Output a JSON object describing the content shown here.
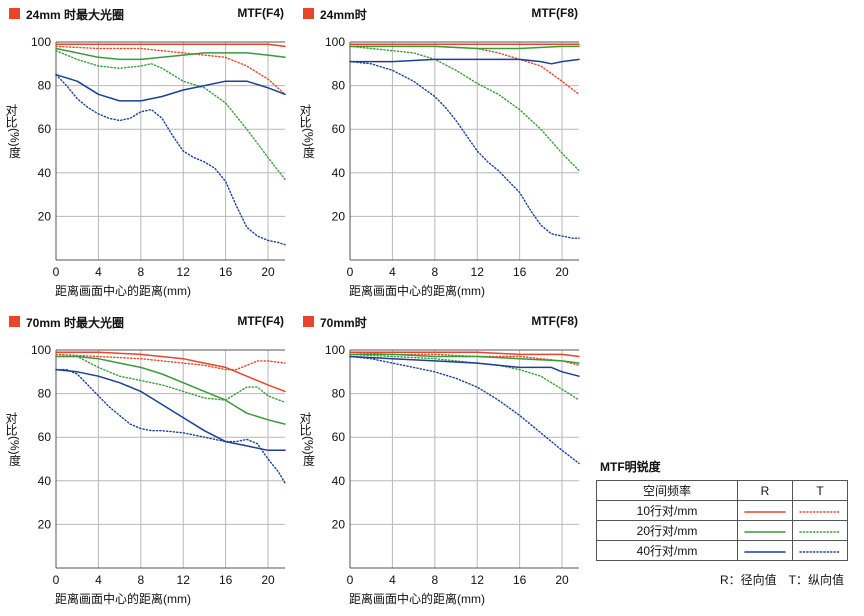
{
  "chart_data": [
    {
      "type": "line",
      "title": "24mm 时最大光圈",
      "aperture": "MTF(F4)",
      "ylabel_top": "对比",
      "ylabel_bottom": "(%)度",
      "xlabel": "距离画面中心的距离(mm)",
      "xlim": [
        0,
        21.6
      ],
      "ylim": [
        0,
        100
      ],
      "xticks": [
        0,
        4,
        8,
        12,
        16,
        20
      ],
      "yticks": [
        20,
        40,
        60,
        80,
        100
      ],
      "series": [
        {
          "name": "10行对/mm R",
          "style": "solid",
          "color": "#e8462a",
          "x": [
            0,
            4,
            8,
            12,
            16,
            20,
            21.6
          ],
          "y": [
            99,
            99,
            99,
            99,
            99,
            99,
            98
          ]
        },
        {
          "name": "10行对/mm T",
          "style": "dotted",
          "color": "#e8462a",
          "x": [
            0,
            4,
            8,
            12,
            16,
            18,
            20,
            21.6
          ],
          "y": [
            98,
            97,
            97,
            95,
            93,
            89,
            83,
            76
          ]
        },
        {
          "name": "20行对/mm R",
          "style": "solid",
          "color": "#3a9a3a",
          "x": [
            0,
            2,
            4,
            6,
            8,
            10,
            12,
            14,
            16,
            18,
            20,
            21.6
          ],
          "y": [
            97,
            95,
            93,
            92,
            92,
            93,
            94,
            95,
            95,
            95,
            94,
            93
          ]
        },
        {
          "name": "20行对/mm T",
          "style": "dotted",
          "color": "#3a9a3a",
          "x": [
            0,
            2,
            4,
            6,
            8,
            9,
            10,
            12,
            14,
            16,
            18,
            20,
            21.6
          ],
          "y": [
            96,
            92,
            89,
            88,
            89,
            90,
            88,
            82,
            79,
            72,
            60,
            47,
            37
          ]
        },
        {
          "name": "40行对/mm R",
          "style": "solid",
          "color": "#1b3f96",
          "x": [
            0,
            2,
            4,
            6,
            8,
            10,
            12,
            14,
            16,
            18,
            20,
            21.6
          ],
          "y": [
            85,
            82,
            76,
            73,
            73,
            75,
            78,
            80,
            82,
            82,
            79,
            76
          ]
        },
        {
          "name": "40行对/mm T",
          "style": "dotted",
          "color": "#1b3f96",
          "x": [
            0,
            1,
            2,
            3,
            4,
            5,
            6,
            7,
            8,
            9,
            10,
            11,
            12,
            13,
            14,
            15,
            16,
            17,
            18,
            19,
            20,
            21,
            21.6
          ],
          "y": [
            85,
            80,
            74,
            70,
            67,
            65,
            64,
            65,
            68,
            69,
            65,
            57,
            50,
            47,
            45,
            42,
            36,
            25,
            15,
            11,
            9,
            8,
            7
          ]
        }
      ]
    },
    {
      "type": "line",
      "title": "24mm时",
      "aperture": "MTF(F8)",
      "ylabel_top": "对比",
      "ylabel_bottom": "(%)度",
      "xlabel": "距离画面中心的距离(mm)",
      "xlim": [
        0,
        21.6
      ],
      "ylim": [
        0,
        100
      ],
      "xticks": [
        0,
        4,
        8,
        12,
        16,
        20
      ],
      "yticks": [
        20,
        40,
        60,
        80,
        100
      ],
      "series": [
        {
          "name": "10行对/mm R",
          "style": "solid",
          "color": "#e8462a",
          "x": [
            0,
            4,
            8,
            12,
            16,
            20,
            21.6
          ],
          "y": [
            99,
            99,
            99,
            99,
            99,
            99,
            99
          ]
        },
        {
          "name": "10行对/mm T",
          "style": "dotted",
          "color": "#e8462a",
          "x": [
            0,
            4,
            8,
            12,
            14,
            16,
            18,
            20,
            21.6
          ],
          "y": [
            98,
            98,
            98,
            97,
            95,
            92,
            89,
            82,
            76
          ]
        },
        {
          "name": "20行对/mm R",
          "style": "solid",
          "color": "#3a9a3a",
          "x": [
            0,
            4,
            8,
            12,
            16,
            20,
            21.6
          ],
          "y": [
            98,
            98,
            98,
            97,
            97,
            98,
            98
          ]
        },
        {
          "name": "20行对/mm T",
          "style": "dotted",
          "color": "#3a9a3a",
          "x": [
            0,
            2,
            4,
            6,
            8,
            10,
            12,
            14,
            16,
            18,
            20,
            21.6
          ],
          "y": [
            98,
            97,
            96,
            95,
            92,
            87,
            81,
            76,
            69,
            60,
            49,
            41
          ]
        },
        {
          "name": "40行对/mm R",
          "style": "solid",
          "color": "#1b3f96",
          "x": [
            0,
            4,
            8,
            12,
            16,
            18,
            19,
            20,
            21.6
          ],
          "y": [
            91,
            91,
            92,
            92,
            92,
            91,
            90,
            91,
            92
          ]
        },
        {
          "name": "40行对/mm T",
          "style": "dotted",
          "color": "#1b3f96",
          "x": [
            0,
            2,
            4,
            6,
            8,
            9,
            10,
            11,
            12,
            13,
            14,
            15,
            16,
            17,
            18,
            19,
            20,
            21,
            21.6
          ],
          "y": [
            91,
            90,
            87,
            82,
            75,
            70,
            64,
            57,
            50,
            45,
            41,
            36,
            31,
            23,
            16,
            12,
            11,
            10,
            10
          ]
        }
      ]
    },
    {
      "type": "line",
      "title": "70mm 时最大光圈",
      "aperture": "MTF(F4)",
      "ylabel_top": "对比",
      "ylabel_bottom": "(%)度",
      "xlabel": "距离画面中心的距离(mm)",
      "xlim": [
        0,
        21.6
      ],
      "ylim": [
        0,
        100
      ],
      "xticks": [
        0,
        4,
        8,
        12,
        16,
        20
      ],
      "yticks": [
        20,
        40,
        60,
        80,
        100
      ],
      "series": [
        {
          "name": "10行对/mm R",
          "style": "solid",
          "color": "#e8462a",
          "x": [
            0,
            4,
            8,
            12,
            14,
            16,
            18,
            20,
            21.6
          ],
          "y": [
            99,
            99,
            98,
            96,
            94,
            92,
            88,
            84,
            81
          ]
        },
        {
          "name": "10行对/mm T",
          "style": "dotted",
          "color": "#e8462a",
          "x": [
            0,
            4,
            8,
            12,
            14,
            16,
            17,
            18,
            19,
            20,
            21.6
          ],
          "y": [
            98,
            97,
            96,
            94,
            93,
            91,
            91,
            93,
            95,
            95,
            94
          ]
        },
        {
          "name": "20行对/mm R",
          "style": "solid",
          "color": "#3a9a3a",
          "x": [
            0,
            2,
            4,
            6,
            8,
            10,
            12,
            14,
            16,
            17,
            18,
            20,
            21.6
          ],
          "y": [
            97,
            97,
            96,
            94,
            92,
            89,
            85,
            81,
            77,
            74,
            71,
            68,
            66
          ]
        },
        {
          "name": "20行对/mm T",
          "style": "dotted",
          "color": "#3a9a3a",
          "x": [
            0,
            2,
            4,
            6,
            8,
            10,
            12,
            14,
            16,
            17,
            18,
            19,
            20,
            21.6
          ],
          "y": [
            97,
            97,
            92,
            88,
            86,
            84,
            81,
            78,
            77,
            80,
            83,
            83,
            79,
            76
          ]
        },
        {
          "name": "40行对/mm R",
          "style": "solid",
          "color": "#1b3f96",
          "x": [
            0,
            2,
            4,
            6,
            8,
            10,
            12,
            14,
            16,
            18,
            20,
            21.6
          ],
          "y": [
            91,
            90,
            88,
            85,
            81,
            75,
            69,
            63,
            58,
            56,
            54,
            54
          ]
        },
        {
          "name": "40行对/mm T",
          "style": "dotted",
          "color": "#1b3f96",
          "x": [
            0,
            1,
            2,
            3,
            4,
            5,
            6,
            7,
            8,
            9,
            10,
            12,
            14,
            15,
            16,
            17,
            18,
            19,
            20,
            21,
            21.6
          ],
          "y": [
            91,
            91,
            89,
            84,
            79,
            74,
            70,
            66,
            64,
            63,
            63,
            62,
            60,
            59,
            58,
            58,
            59,
            57,
            50,
            44,
            39
          ]
        }
      ]
    },
    {
      "type": "line",
      "title": "70mm时",
      "aperture": "MTF(F8)",
      "ylabel_top": "对比",
      "ylabel_bottom": "(%)度",
      "xlabel": "距离画面中心的距离(mm)",
      "xlim": [
        0,
        21.6
      ],
      "ylim": [
        0,
        100
      ],
      "xticks": [
        0,
        4,
        8,
        12,
        16,
        20
      ],
      "yticks": [
        20,
        40,
        60,
        80,
        100
      ],
      "series": [
        {
          "name": "10行对/mm R",
          "style": "solid",
          "color": "#e8462a",
          "x": [
            0,
            4,
            8,
            12,
            16,
            20,
            21.6
          ],
          "y": [
            99,
            99,
            99,
            99,
            98,
            98,
            97
          ]
        },
        {
          "name": "10行对/mm T",
          "style": "dotted",
          "color": "#e8462a",
          "x": [
            0,
            4,
            8,
            12,
            16,
            18,
            20,
            21.6
          ],
          "y": [
            99,
            98,
            98,
            97,
            97,
            96,
            95,
            93
          ]
        },
        {
          "name": "20行对/mm R",
          "style": "solid",
          "color": "#3a9a3a",
          "x": [
            0,
            4,
            8,
            12,
            16,
            20,
            21.6
          ],
          "y": [
            98,
            98,
            97,
            97,
            96,
            95,
            94
          ]
        },
        {
          "name": "20行对/mm T",
          "style": "dotted",
          "color": "#3a9a3a",
          "x": [
            0,
            4,
            8,
            12,
            14,
            16,
            18,
            20,
            21.6
          ],
          "y": [
            98,
            97,
            96,
            94,
            93,
            91,
            88,
            82,
            77
          ]
        },
        {
          "name": "40行对/mm R",
          "style": "solid",
          "color": "#1b3f96",
          "x": [
            0,
            4,
            8,
            12,
            14,
            16,
            18,
            19,
            20,
            21.6
          ],
          "y": [
            97,
            96,
            95,
            94,
            93,
            92,
            92,
            92,
            90,
            88
          ]
        },
        {
          "name": "40行对/mm T",
          "style": "dotted",
          "color": "#1b3f96",
          "x": [
            0,
            2,
            4,
            6,
            8,
            10,
            12,
            14,
            16,
            18,
            20,
            21.6
          ],
          "y": [
            97,
            96,
            94,
            92,
            90,
            87,
            83,
            77,
            70,
            62,
            54,
            48
          ]
        }
      ]
    }
  ],
  "legend": {
    "title": "MTF明锐度",
    "header": [
      "空间频率",
      "R",
      "T"
    ],
    "rows": [
      {
        "label": "10行对/mm",
        "color": "#e8462a"
      },
      {
        "label": "20行对/mm",
        "color": "#3a9a3a"
      },
      {
        "label": "40行对/mm",
        "color": "#1b3f96"
      }
    ],
    "note": "R：径向值　T：纵向值"
  }
}
